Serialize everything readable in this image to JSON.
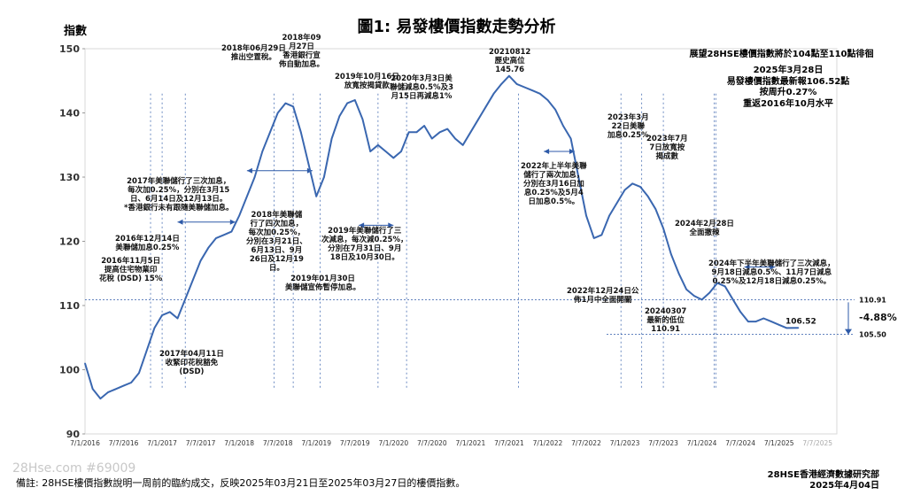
{
  "title": "圖1: 易發樓價指數走勢分析",
  "watermark": "28Hse.com #69009",
  "footer": {
    "note": "備註: 28HSE樓價指數說明一周前的臨約成交，反映2025年03月21日至2025年03月27日的樓價指數。",
    "source": "28HSE香港經濟數據研究部\n2025年4月04日"
  },
  "right_box": {
    "line1": "展望28HSE樓價指數將於104點至110點徘徊",
    "line2": "2025年3月28日\n易發樓價指數最新報106.52點\n按周升0.27%\n重返2016年10月水平"
  },
  "annotations": [
    {
      "text": "2016年11月5日\n提高住宅物業印\n花稅 (DSD) 15%"
    },
    {
      "text": "2016年12月14日\n美聯儲加息0.25%"
    },
    {
      "text": "2017年04月11日\n收緊印花稅豁免\n(DSD)"
    },
    {
      "text": "2017年美聯儲行了三次加息，\n每次加0.25%，分別在3月15\n日、6月14日及12月13日。\n*香港銀行未有跟隨美聯儲加息。"
    },
    {
      "text": "2018年06月29日\n推出空置稅。"
    },
    {
      "text": "2018年09\n月27日\n香港銀行宣\n佈自動加息。"
    },
    {
      "text": "2018年美聯儲\n行了四次加息，\n每次加0.25%，\n分別在3月21日、\n6月13日、9月\n26日及12月19\n日。"
    },
    {
      "text": "2019年01月30日\n美聯儲宣佈暫停加息。"
    },
    {
      "text": "2019年10月16日\n放寬按揭貸款"
    },
    {
      "text": "2019年美聯儲行了三\n次減息，每次減0.25%，\n分別在7月31日、9月\n18日及10月30日。"
    },
    {
      "text": "2020年3月3日美\n聯儲減息0.5%及3\n月15日再減息1%"
    },
    {
      "text": "20210812\n歷史高位\n145.76"
    },
    {
      "text": "2022年上半年美聯\n儲行了兩次加息，\n分別在3月16日加\n息0.25%及5月4\n日加息0.5%。"
    },
    {
      "text": "2023年3月\n22日美聯\n加息0.25%"
    },
    {
      "text": "2023年7月\n7日放寬按\n揭成數"
    },
    {
      "text": "2022年12月24日公\n佈1月中全面開關"
    },
    {
      "text": "20240307\n最新的低位\n110.91"
    },
    {
      "text": "2024年2月28日\n全面撤辣"
    },
    {
      "text": "2024年下半年美聯儲行了三次減息，\n9月18日減息0.5%、11月7日減息\n0.25%及12月18日減息0.25%。"
    }
  ],
  "chart_data": {
    "type": "line",
    "title": "圖1: 易發樓價指數走勢分析",
    "ylabel": "指數",
    "xlabel": "",
    "ylim": [
      90,
      150
    ],
    "yticks": [
      90,
      100,
      110,
      120,
      130,
      140,
      150
    ],
    "xtick_labels": [
      "7/1/2016",
      "7/7/2016",
      "7/1/2017",
      "7/7/2017",
      "7/1/2018",
      "7/7/2018",
      "7/1/2019",
      "7/7/2019",
      "7/1/2020",
      "7/7/2020",
      "7/1/2021",
      "7/7/2021",
      "7/1/2022",
      "7/7/2022",
      "7/1/2023",
      "7/7/2023",
      "7/1/2024",
      "7/7/2024",
      "7/1/2025",
      "7/7/2025"
    ],
    "reference_lines": [
      {
        "label": "110.91",
        "value": 110.91
      },
      {
        "label": "105.50",
        "value": 105.5
      }
    ],
    "callouts": {
      "latest": "106.52",
      "drop": "-4.88%"
    },
    "x": [
      2016.0,
      2016.1,
      2016.2,
      2016.3,
      2016.4,
      2016.5,
      2016.6,
      2016.7,
      2016.8,
      2016.9,
      2017.0,
      2017.1,
      2017.2,
      2017.3,
      2017.4,
      2017.5,
      2017.6,
      2017.7,
      2017.8,
      2017.9,
      2018.0,
      2018.1,
      2018.2,
      2018.3,
      2018.4,
      2018.5,
      2018.6,
      2018.7,
      2018.8,
      2018.9,
      2019.0,
      2019.1,
      2019.2,
      2019.3,
      2019.4,
      2019.5,
      2019.6,
      2019.7,
      2019.8,
      2019.9,
      2020.0,
      2020.1,
      2020.2,
      2020.3,
      2020.4,
      2020.5,
      2020.6,
      2020.7,
      2020.8,
      2020.9,
      2021.0,
      2021.1,
      2021.2,
      2021.3,
      2021.4,
      2021.5,
      2021.6,
      2021.7,
      2021.8,
      2021.9,
      2022.0,
      2022.1,
      2022.2,
      2022.3,
      2022.4,
      2022.5,
      2022.6,
      2022.7,
      2022.8,
      2022.9,
      2023.0,
      2023.1,
      2023.2,
      2023.3,
      2023.4,
      2023.5,
      2023.6,
      2023.7,
      2023.8,
      2023.9,
      2024.0,
      2024.1,
      2024.2,
      2024.3,
      2024.4,
      2024.5,
      2024.6,
      2024.7,
      2024.8,
      2024.9,
      2025.0,
      2025.1,
      2025.25
    ],
    "series": [
      {
        "values": [
          101.0,
          97.0,
          95.5,
          96.5,
          97.0,
          97.5,
          98.0,
          99.5,
          103.0,
          106.5,
          108.5,
          109.0,
          108.0,
          111.0,
          114.0,
          117.0,
          119.0,
          120.5,
          121.0,
          121.5,
          124.0,
          127.0,
          130.0,
          134.0,
          137.0,
          140.0,
          141.5,
          141.0,
          137.0,
          132.0,
          127.0,
          130.0,
          136.0,
          139.5,
          141.5,
          142.0,
          139.0,
          134.0,
          135.0,
          134.0,
          133.0,
          134.0,
          137.0,
          137.0,
          138.0,
          136.0,
          137.0,
          137.5,
          136.0,
          135.0,
          137.0,
          139.0,
          141.0,
          143.0,
          144.5,
          145.76,
          144.5,
          144.0,
          143.5,
          143.0,
          142.0,
          140.5,
          138.0,
          136.0,
          130.0,
          124.0,
          120.5,
          121.0,
          124.0,
          126.0,
          128.0,
          129.0,
          128.5,
          127.0,
          125.0,
          122.0,
          118.0,
          115.0,
          112.5,
          111.5,
          110.91,
          112.0,
          113.5,
          113.0,
          111.0,
          109.0,
          107.5,
          107.5,
          108.0,
          107.5,
          107.0,
          106.5,
          106.52
        ]
      }
    ]
  }
}
